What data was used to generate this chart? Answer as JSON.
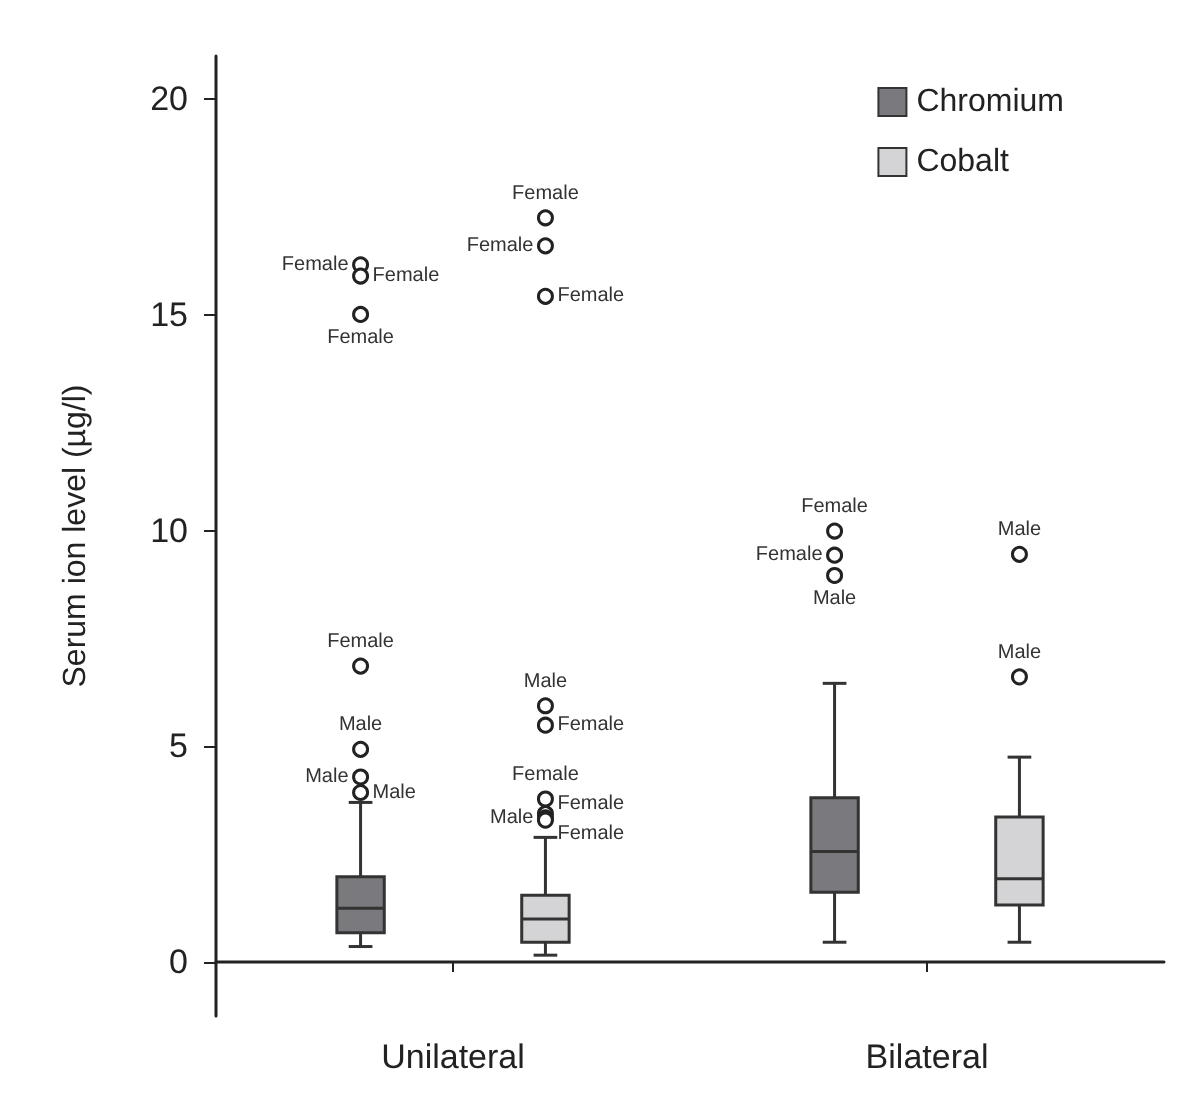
{
  "chart_data": {
    "type": "box",
    "ylabel": "Serum ion level (µg/l)",
    "categories": [
      "Unilateral",
      "Bilateral"
    ],
    "ylim": [
      -1.25,
      21
    ],
    "yticks": [
      0,
      5,
      10,
      15,
      20
    ],
    "legend": "top right",
    "marker": "circle",
    "series": [
      {
        "name": "Chromium",
        "color": "#7a7a7e",
        "boxes": [
          {
            "low": 0.36,
            "q1": 0.68,
            "median": 1.25,
            "q3": 1.98,
            "high": 3.7,
            "outliers": [
              16.16,
              15.9,
              15.01,
              6.86,
              4.93,
              4.29,
              3.93
            ]
          },
          {
            "low": 0.46,
            "q1": 1.62,
            "median": 2.56,
            "q3": 3.81,
            "high": 6.46,
            "outliers": [
              9.99,
              9.43,
              8.96
            ]
          }
        ]
      },
      {
        "name": "Cobalt",
        "color": "#d4d4d6",
        "boxes": [
          {
            "low": 0.16,
            "q1": 0.46,
            "median": 1.0,
            "q3": 1.55,
            "high": 2.89,
            "outliers": [
              17.25,
              16.6,
              15.43,
              5.94,
              5.49,
              3.78,
              3.44,
              3.34,
              3.29
            ]
          },
          {
            "low": 0.46,
            "q1": 1.32,
            "median": 1.93,
            "q3": 3.36,
            "high": 4.75,
            "outliers": [
              9.45,
              6.61
            ]
          }
        ]
      }
    ],
    "annotations": [
      "Female",
      "Female",
      "Female",
      "Female",
      "Male",
      "Male",
      "Male",
      "Female",
      "Female",
      "Male",
      "Female",
      "Female",
      "Female",
      "Male",
      "Female",
      "Female",
      "Female",
      "Male",
      "Female",
      "Male",
      "Male"
    ]
  }
}
